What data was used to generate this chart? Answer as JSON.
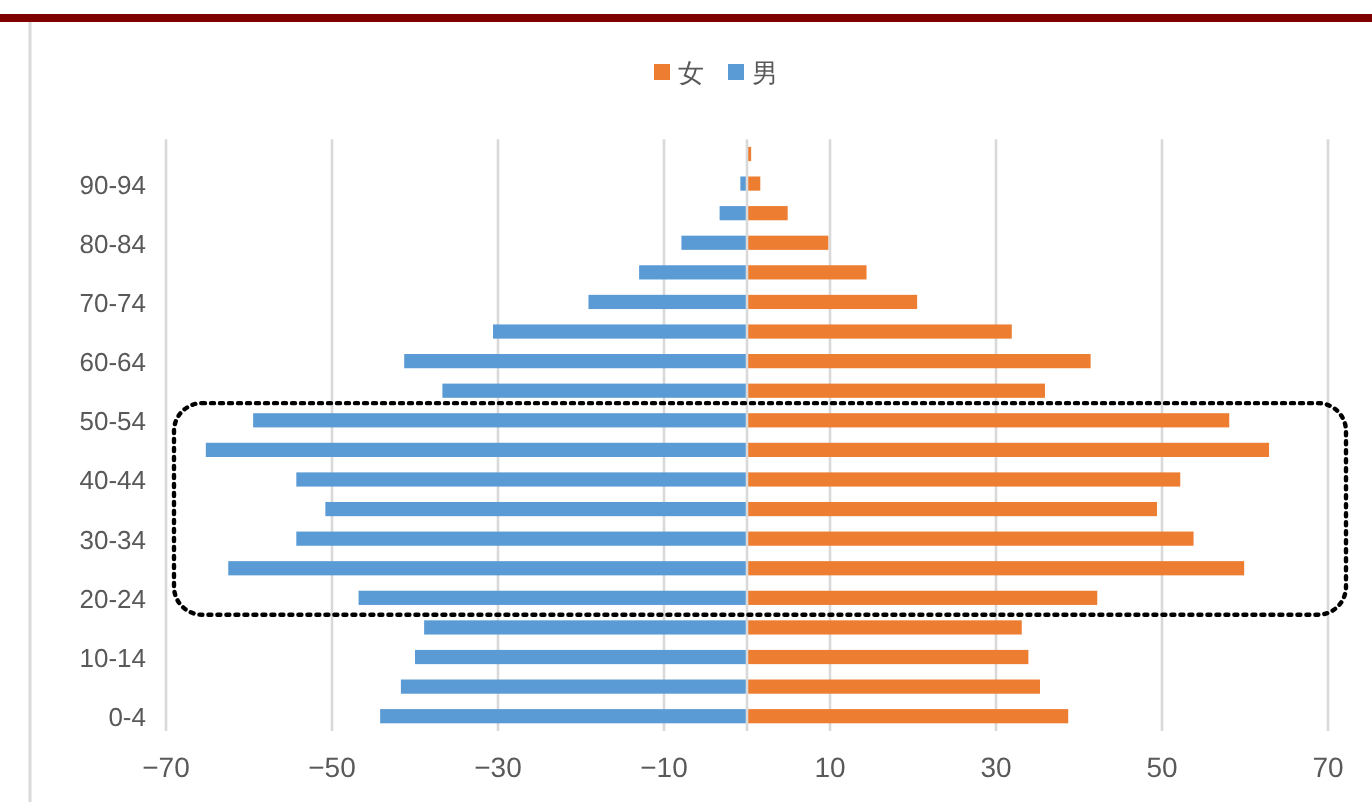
{
  "chart_data": {
    "type": "bar",
    "orientation": "horizontal",
    "stacked": true,
    "categories": [
      null,
      "90-94",
      null,
      "80-84",
      null,
      "70-74",
      null,
      "60-64",
      null,
      "50-54",
      null,
      "40-44",
      null,
      "30-34",
      null,
      "20-24",
      null,
      "10-14",
      null,
      "0-4"
    ],
    "series": [
      {
        "name": "女",
        "color": "#ed7d31",
        "values": [
          0.5,
          1.6,
          4.9,
          9.8,
          14.4,
          20.5,
          31.9,
          41.4,
          35.9,
          58.1,
          62.9,
          52.2,
          49.4,
          53.8,
          59.9,
          42.2,
          33.1,
          33.9,
          35.3,
          38.7
        ]
      },
      {
        "name": "男",
        "color": "#5b9bd5",
        "values": [
          0,
          -0.8,
          -3.3,
          -7.9,
          -13.0,
          -19.1,
          -30.6,
          -41.3,
          -36.7,
          -59.5,
          -65.2,
          -54.3,
          -50.8,
          -54.3,
          -62.5,
          -46.8,
          -38.9,
          -40.0,
          -41.7,
          -44.2
        ]
      }
    ],
    "xlim": [
      -70,
      70
    ],
    "xticks": [
      {
        "value": -70,
        "label": "−70"
      },
      {
        "value": -50,
        "label": "−50"
      },
      {
        "value": -30,
        "label": "−30"
      },
      {
        "value": -10,
        "label": "−10"
      },
      10,
      30,
      50,
      70
    ],
    "grid": "x",
    "legend": "top"
  }
}
